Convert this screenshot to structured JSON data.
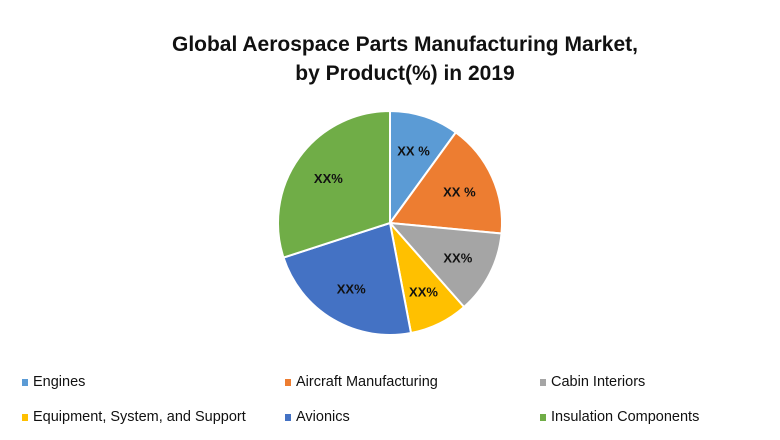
{
  "chart_data": {
    "type": "pie",
    "title_lines": [
      "Global Aerospace Parts Manufacturing Market,",
      "by Product(%) in 2019"
    ],
    "start_angle": "top, clockwise",
    "slices": [
      {
        "name": "Engines",
        "value": 10,
        "label": "XX %",
        "color": "#5B9BD5"
      },
      {
        "name": "Aircraft Manufacturing",
        "value": 16.5,
        "label": "XX %",
        "color": "#ED7D31"
      },
      {
        "name": "Cabin Interiors",
        "value": 12,
        "label": "XX%",
        "color": "#A5A5A5"
      },
      {
        "name": "Equipment, System, and Support",
        "value": 8.5,
        "label": "XX%",
        "color": "#FFC000"
      },
      {
        "name": "Avionics",
        "value": 23,
        "label": "XX%",
        "color": "#4472C4"
      },
      {
        "name": "Insulation Components",
        "value": 30,
        "label": "XX%",
        "color": "#70AD47"
      }
    ],
    "legend_position": "bottom"
  }
}
